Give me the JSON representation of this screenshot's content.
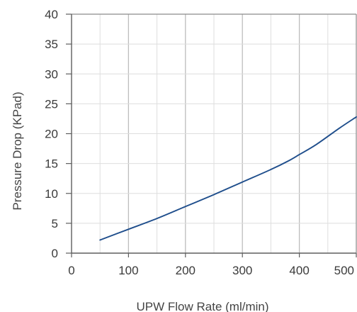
{
  "chart_data": {
    "type": "line",
    "title": "",
    "xlabel": "UPW Flow Rate (ml/min)",
    "ylabel": "Pressure Drop (KPad)",
    "xlim": [
      0,
      500
    ],
    "ylim": [
      0,
      40
    ],
    "x_ticks": [
      "0",
      "100",
      "200",
      "300",
      "400",
      "500"
    ],
    "y_ticks": [
      "0",
      "5",
      "10",
      "15",
      "20",
      "25",
      "30",
      "35",
      "40"
    ],
    "grid": true,
    "series": [
      {
        "color": "#1f4e8c",
        "x": [
          50,
          100,
          150,
          200,
          250,
          300,
          350,
          380,
          400,
          430,
          470,
          500
        ],
        "y": [
          2.2,
          4.0,
          5.8,
          7.8,
          9.8,
          11.9,
          14.0,
          15.4,
          16.5,
          18.2,
          20.9,
          22.8
        ]
      }
    ]
  }
}
